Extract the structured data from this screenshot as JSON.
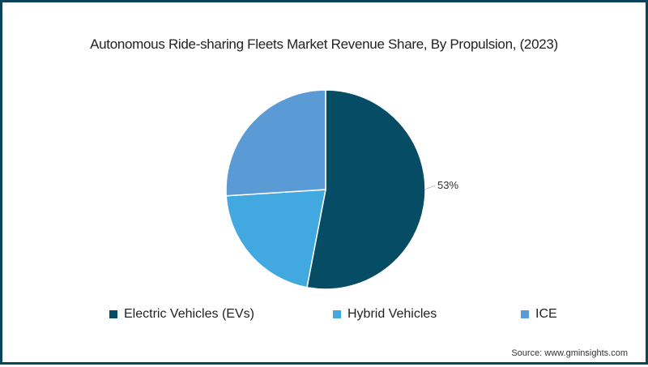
{
  "chart_data": {
    "type": "pie",
    "title": "Autonomous Ride-sharing Fleets Market Revenue Share, By Propulsion, (2023)",
    "categories": [
      "Electric Vehicles (EVs)",
      "Hybrid Vehicles",
      "ICE"
    ],
    "values": [
      53,
      21,
      26
    ],
    "colors": [
      "#064c64",
      "#42a8e0",
      "#5b9bd5"
    ],
    "data_labels": [
      {
        "category": "Electric Vehicles (EVs)",
        "text": "53%"
      }
    ],
    "legend_position": "bottom",
    "source": "Source: www.gminsights.com"
  },
  "title": "Autonomous Ride-sharing Fleets Market Revenue Share, By Propulsion, (2023)",
  "label_ev": "53%",
  "legend": [
    {
      "label": "Electric Vehicles (EVs)",
      "color": "#064c64"
    },
    {
      "label": "Hybrid Vehicles",
      "color": "#42a8e0"
    },
    {
      "label": "ICE",
      "color": "#5b9bd5"
    }
  ],
  "source": "Source: www.gminsights.com"
}
